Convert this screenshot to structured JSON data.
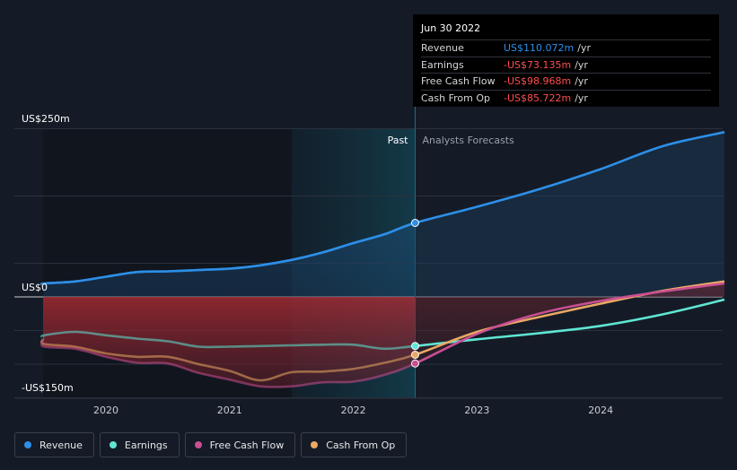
{
  "chart_data": {
    "type": "line",
    "y_unit": "US$ millions",
    "y_tick_labels": [
      {
        "value": 250,
        "label": "US$250m"
      },
      {
        "value": 0,
        "label": "US$0"
      },
      {
        "value": -150,
        "label": "-US$150m"
      }
    ],
    "ylim": [
      -150,
      250
    ],
    "xlim": [
      2019.25,
      2025.0
    ],
    "x_ticks": [
      2020,
      2021,
      2022,
      2023,
      2024
    ],
    "past_label": "Past",
    "forecast_label": "Analysts Forecasts",
    "past_forecast_split": 2022.5,
    "highlight_start": 2021.5,
    "series": [
      {
        "name": "Revenue",
        "color": "#2d8fe8",
        "x": [
          2019.25,
          2019.5,
          2019.75,
          2020.0,
          2020.25,
          2020.5,
          2020.75,
          2021.0,
          2021.25,
          2021.5,
          2021.75,
          2022.0,
          2022.25,
          2022.5,
          2023.0,
          2023.5,
          2024.0,
          2024.5,
          2025.0
        ],
        "values": [
          19,
          20,
          23,
          30,
          37,
          38,
          40,
          42,
          47,
          55,
          66,
          80,
          93,
          110,
          134,
          160,
          190,
          224,
          245
        ]
      },
      {
        "name": "Earnings",
        "color": "#5fe6d4",
        "x": [
          2019.25,
          2019.5,
          2019.75,
          2020.0,
          2020.25,
          2020.5,
          2020.75,
          2021.0,
          2021.25,
          2021.5,
          2021.75,
          2022.0,
          2022.25,
          2022.5,
          2023.0,
          2023.5,
          2024.0,
          2024.5,
          2025.0
        ],
        "values": [
          -60,
          -57,
          -52,
          -57,
          -62,
          -66,
          -74,
          -74,
          -73,
          -72,
          -71,
          -71,
          -77,
          -73,
          -63,
          -54,
          -43,
          -26,
          -4
        ]
      },
      {
        "name": "Free Cash Flow",
        "color": "#c84f92",
        "x": [
          2019.25,
          2019.5,
          2019.75,
          2020.0,
          2020.25,
          2020.5,
          2020.75,
          2021.0,
          2021.25,
          2021.5,
          2021.75,
          2022.0,
          2022.25,
          2022.5,
          2023.0,
          2023.5,
          2024.0,
          2024.5,
          2025.0
        ],
        "values": [
          -64,
          -74,
          -77,
          -89,
          -98,
          -99,
          -113,
          -123,
          -133,
          -133,
          -127,
          -126,
          -116,
          -99,
          -55,
          -25,
          -6,
          8,
          20
        ]
      },
      {
        "name": "Cash From Op",
        "color": "#e9a863",
        "x": [
          2019.25,
          2019.5,
          2019.75,
          2020.0,
          2020.25,
          2020.5,
          2020.75,
          2021.0,
          2021.25,
          2021.5,
          2021.75,
          2022.0,
          2022.25,
          2022.5,
          2023.0,
          2023.5,
          2024.0,
          2024.5,
          2025.0
        ],
        "values": [
          -62,
          -70,
          -74,
          -84,
          -89,
          -89,
          -100,
          -110,
          -124,
          -112,
          -111,
          -107,
          -98,
          -86,
          -52,
          -30,
          -10,
          9,
          23
        ]
      }
    ],
    "tooltip": {
      "date": "Jun 30 2022",
      "rows": [
        {
          "label": "Revenue",
          "value": "US$110.072m",
          "unit": "/yr",
          "color": "#2d8fe8"
        },
        {
          "label": "Earnings",
          "value": "-US$73.135m",
          "unit": "/yr",
          "color": "#ff4d4d"
        },
        {
          "label": "Free Cash Flow",
          "value": "-US$98.968m",
          "unit": "/yr",
          "color": "#ff4d4d"
        },
        {
          "label": "Cash From Op",
          "value": "-US$85.722m",
          "unit": "/yr",
          "color": "#ff4d4d"
        }
      ]
    }
  },
  "legend": [
    {
      "label": "Revenue",
      "color": "#2d8fe8"
    },
    {
      "label": "Earnings",
      "color": "#5fe6d4"
    },
    {
      "label": "Free Cash Flow",
      "color": "#c84f92"
    },
    {
      "label": "Cash From Op",
      "color": "#e9a863"
    }
  ]
}
